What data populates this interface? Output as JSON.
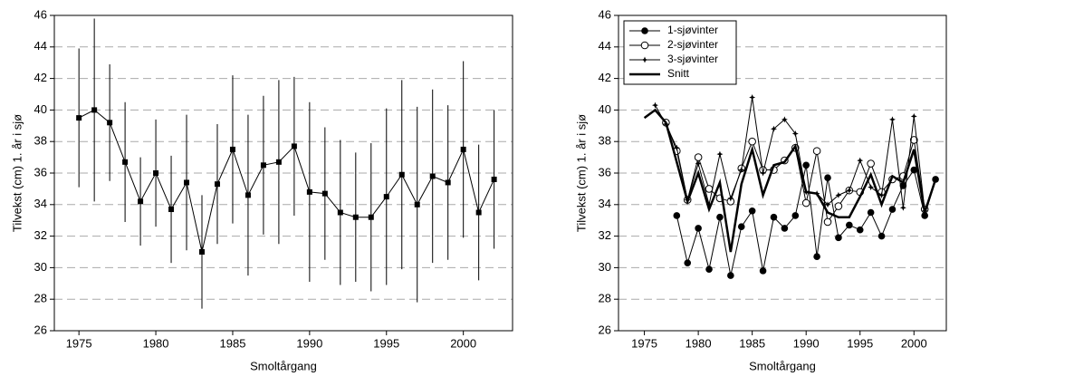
{
  "chart_data": [
    {
      "type": "errorbar",
      "xlabel": "Smoltårgang",
      "ylabel": "Tilvekst (cm) 1. år i sjø",
      "x": [
        1975,
        1976,
        1977,
        1978,
        1979,
        1980,
        1981,
        1982,
        1983,
        1984,
        1985,
        1986,
        1987,
        1988,
        1989,
        1990,
        1991,
        1992,
        1993,
        1994,
        1995,
        1996,
        1997,
        1998,
        1999,
        2000,
        2001,
        2002
      ],
      "values": [
        39.5,
        40.0,
        39.2,
        36.7,
        34.2,
        36.0,
        33.7,
        35.4,
        31.0,
        35.3,
        37.5,
        34.6,
        36.5,
        36.7,
        37.7,
        34.8,
        34.7,
        33.5,
        33.2,
        33.2,
        34.5,
        35.9,
        34.0,
        35.8,
        35.4,
        37.5,
        33.5,
        35.6
      ],
      "errors": [
        4.4,
        5.8,
        3.7,
        3.8,
        2.8,
        3.4,
        3.4,
        4.3,
        3.6,
        3.8,
        4.7,
        5.1,
        4.4,
        5.2,
        4.4,
        5.7,
        4.2,
        4.6,
        4.1,
        4.7,
        5.6,
        6.0,
        6.2,
        5.5,
        4.9,
        5.6,
        4.3,
        4.4
      ],
      "color": "#000000",
      "marker": "square",
      "xlim": [
        1973.4,
        2003.2
      ],
      "xticks": [
        1975,
        1980,
        1985,
        1990,
        1995,
        2000
      ],
      "ylim": [
        26,
        46
      ],
      "yticks": [
        26,
        28,
        30,
        32,
        34,
        36,
        38,
        40,
        42,
        44,
        46
      ],
      "grid": true
    },
    {
      "type": "line",
      "xlabel": "Smoltårgang",
      "ylabel": "Tilvekst (cm) 1. år i sjø",
      "legend": "top-left",
      "xlim": [
        1972.6,
        2003.0
      ],
      "xticks": [
        1975,
        1980,
        1985,
        1990,
        1995,
        2000
      ],
      "ylim": [
        26,
        46
      ],
      "yticks": [
        26,
        28,
        30,
        32,
        34,
        36,
        38,
        40,
        42,
        44,
        46
      ],
      "grid": true,
      "series": [
        {
          "name": "1-sjøvinter",
          "color": "#000000",
          "marker": "filled-circle",
          "linewidth": 1,
          "x": [
            1978,
            1979,
            1980,
            1981,
            1982,
            1983,
            1984,
            1985,
            1986,
            1987,
            1988,
            1989,
            1990,
            1991,
            1992,
            1993,
            1994,
            1995,
            1996,
            1997,
            1998,
            1999,
            2000,
            2001,
            2002
          ],
          "values": [
            33.3,
            30.3,
            32.5,
            29.9,
            33.2,
            29.5,
            32.6,
            33.6,
            29.8,
            33.2,
            32.5,
            33.3,
            36.5,
            30.7,
            35.7,
            31.9,
            32.7,
            32.4,
            33.5,
            32.0,
            33.7,
            35.2,
            36.2,
            33.3,
            35.6
          ]
        },
        {
          "name": "2-sjøvinter",
          "color": "#000000",
          "marker": "open-circle",
          "linewidth": 1,
          "x": [
            1977,
            1978,
            1979,
            1980,
            1981,
            1982,
            1983,
            1984,
            1985,
            1986,
            1987,
            1988,
            1989,
            1990,
            1991,
            1992,
            1993,
            1994,
            1995,
            1996,
            1997,
            1998,
            1999,
            2000,
            2001
          ],
          "values": [
            39.2,
            37.4,
            34.3,
            37.0,
            35.0,
            34.4,
            34.2,
            36.3,
            38.0,
            36.2,
            36.2,
            36.8,
            37.6,
            34.1,
            37.4,
            32.9,
            33.9,
            34.9,
            34.8,
            36.6,
            34.8,
            35.6,
            35.8,
            38.1,
            33.7
          ]
        },
        {
          "name": "3-sjøvinter",
          "color": "#000000",
          "marker": "star",
          "linewidth": 1,
          "x": [
            1976,
            1977,
            1978,
            1979,
            1980,
            1981,
            1982,
            1983,
            1984,
            1985,
            1986,
            1987,
            1988,
            1989,
            1990,
            1991,
            1992,
            1993,
            1994,
            1995,
            1996,
            1997,
            1998,
            1999,
            2000,
            2001
          ],
          "values": [
            40.3,
            39.1,
            37.6,
            34.3,
            36.6,
            34.0,
            37.2,
            34.4,
            36.2,
            40.8,
            36.0,
            38.8,
            39.4,
            38.5,
            34.8,
            34.7,
            34.0,
            34.6,
            34.9,
            36.8,
            35.1,
            34.6,
            39.4,
            33.8,
            39.6,
            33.6
          ]
        },
        {
          "name": "Snitt",
          "color": "#000000",
          "marker": "none",
          "linewidth": 2.5,
          "x": [
            1975,
            1976,
            1977,
            1978,
            1979,
            1980,
            1981,
            1982,
            1983,
            1984,
            1985,
            1986,
            1987,
            1988,
            1989,
            1990,
            1991,
            1992,
            1993,
            1994,
            1995,
            1996,
            1997,
            1998,
            1999,
            2000,
            2001,
            2002
          ],
          "values": [
            39.5,
            40.0,
            39.2,
            36.7,
            34.2,
            36.0,
            33.7,
            35.4,
            31.0,
            35.3,
            37.5,
            34.6,
            36.5,
            36.7,
            37.7,
            34.8,
            34.7,
            33.5,
            33.2,
            33.2,
            34.5,
            35.9,
            34.0,
            35.8,
            35.4,
            37.5,
            33.5,
            35.6
          ]
        }
      ]
    }
  ]
}
